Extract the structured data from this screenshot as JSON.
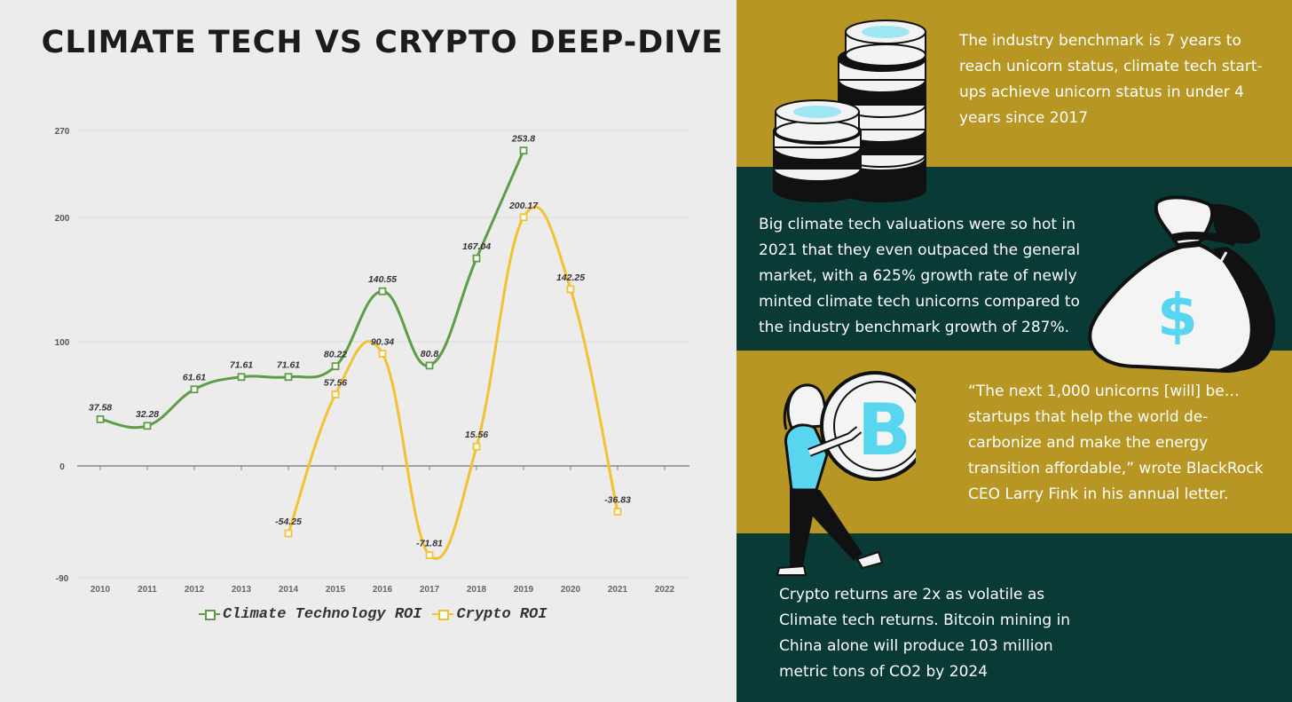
{
  "title": "CLIMATE TECH VS CRYPTO DEEP-DIVE",
  "colors": {
    "climate": "#5e9c47",
    "crypto": "#f2c233",
    "mustard": "#b89624",
    "teal": "#0a3a36",
    "background": "#ececec"
  },
  "chart_data": {
    "type": "line",
    "title": "",
    "xlabel": "",
    "ylabel": "",
    "categories": [
      "2010",
      "2011",
      "2012",
      "2013",
      "2014",
      "2015",
      "2016",
      "2017",
      "2018",
      "2019",
      "2020",
      "2021",
      "2022"
    ],
    "y_ticks": [
      "270",
      "200",
      "100",
      "0",
      "-90"
    ],
    "ylim": [
      -90,
      270
    ],
    "grid": true,
    "legend_position": "bottom",
    "series": [
      {
        "name": "Climate Technology ROI",
        "color": "#5e9c47",
        "values": [
          37.58,
          32.28,
          61.61,
          71.61,
          71.61,
          80.22,
          140.55,
          80.8,
          167.04,
          253.8,
          null,
          null,
          null
        ],
        "labels": [
          "37.58",
          "32.28",
          "61.61",
          "71.61",
          "71.61",
          "80.22",
          "140.55",
          "80.8",
          "167.04",
          "253.8",
          "",
          "",
          ""
        ]
      },
      {
        "name": "Crypto ROI",
        "color": "#f2c233",
        "values": [
          null,
          null,
          null,
          null,
          -54.25,
          57.56,
          90.34,
          -71.81,
          15.56,
          200.17,
          142.25,
          -36.83,
          null
        ],
        "labels": [
          "",
          "",
          "",
          "",
          "-54.25",
          "57.56",
          "90.34",
          "-71.81",
          "15.56",
          "200.17",
          "142.25",
          "-36.83",
          ""
        ]
      }
    ]
  },
  "panels": {
    "p1": "The industry benchmark is 7 years to reach unicorn status, climate tech start-ups achieve unicorn status in under 4 years since 2017",
    "p2": "Big climate tech valuations were so hot in 2021 that they even outpaced the general market, with a 625% growth rate of newly minted climate tech unicorns compared to the industry benchmark growth of 287%.",
    "p3": "“The next 1,000 unicorns [will] be… startups that help the world de-carbonize and make the energy transition affordable,” wrote BlackRock CEO Larry Fink in his annual letter.",
    "p4": "Crypto returns are 2x as volatile as Climate tech returns. Bitcoin mining in China alone will produce 103 million metric tons of CO2 by 2024"
  },
  "icons": {
    "coins": "coin-stack-icon",
    "bag": "money-bag-icon",
    "person": "person-with-bitcoin-icon",
    "dollar": "$"
  }
}
